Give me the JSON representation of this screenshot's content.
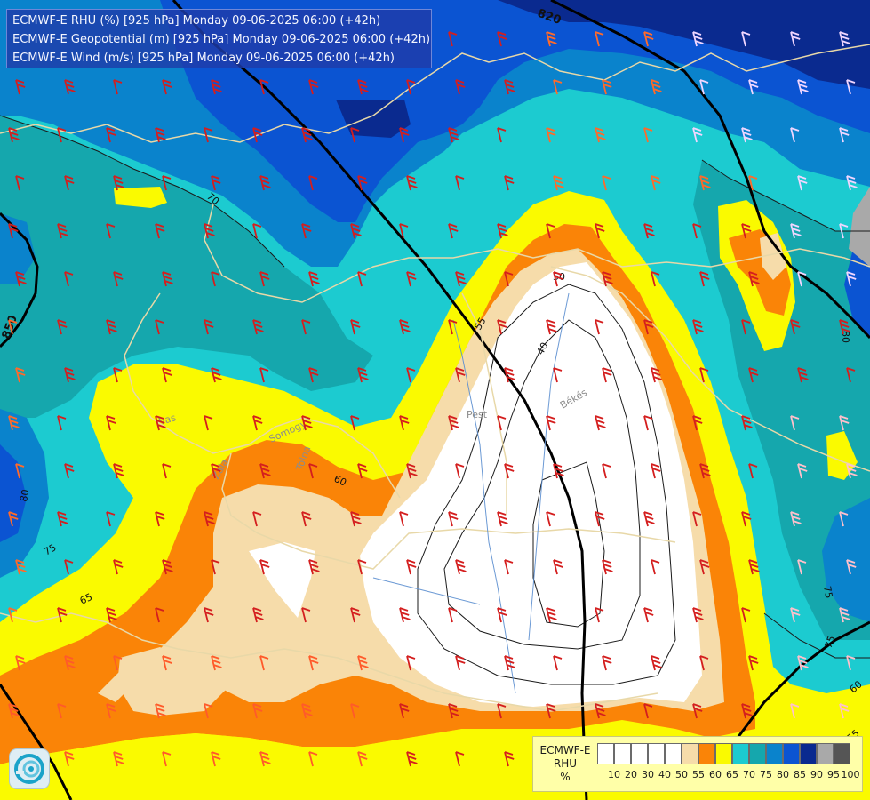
{
  "titles": {
    "line1": "ECMWF-E RHU (%) [925 hPa] Monday 09-06-2025 06:00 (+42h)",
    "line2": "ECMWF-E Geopotential (m) [925 hPa] Monday 09-06-2025 06:00 (+42h)",
    "line3": "ECMWF-E Wind (m/s) [925 hPa] Monday 09-06-2025 06:00 (+42h)"
  },
  "legend": {
    "title_lines": [
      "ECMWF-E",
      "RHU",
      "%"
    ],
    "levels": [
      "10",
      "20",
      "30",
      "40",
      "50",
      "55",
      "60",
      "65",
      "70",
      "75",
      "80",
      "85",
      "90",
      "95",
      "100"
    ],
    "colors": [
      "#ffffff",
      "#ffffff",
      "#ffffff",
      "#ffffff",
      "#ffffff",
      "#f6dcaa",
      "#fa8407",
      "#fafa00",
      "#1ccbd0",
      "#15a7ad",
      "#0a83cc",
      "#0b54d2",
      "#0a2a8f",
      "#a9a9a9",
      "#555555"
    ]
  },
  "map": {
    "contour_labels": [
      {
        "text": "820"
      },
      {
        "text": "850"
      },
      {
        "text": "80"
      },
      {
        "text": "70"
      },
      {
        "text": "50"
      },
      {
        "text": "40"
      },
      {
        "text": "55"
      },
      {
        "text": "60"
      },
      {
        "text": "65"
      },
      {
        "text": "75"
      },
      {
        "text": "80"
      },
      {
        "text": "75"
      },
      {
        "text": "75"
      },
      {
        "text": "60"
      },
      {
        "text": "55"
      }
    ],
    "place_labels": [
      "Pest",
      "Békés",
      "Vas",
      "Somogy",
      "Zala",
      "Tolna"
    ]
  }
}
